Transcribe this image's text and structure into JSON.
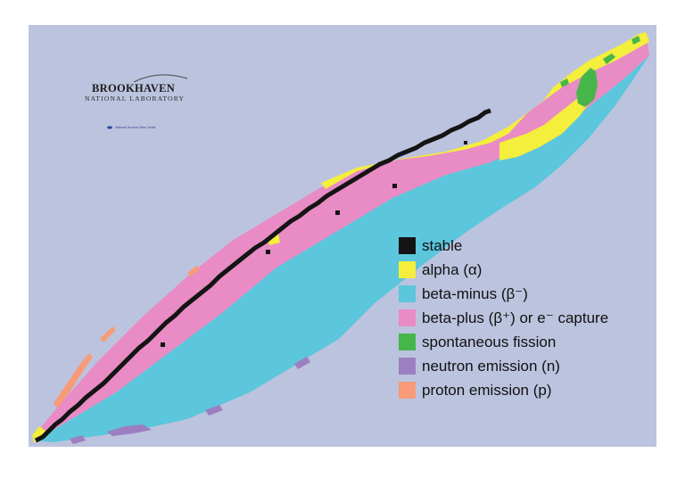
{
  "colors": {
    "background": "#bcc3de",
    "stable": "#141414",
    "alpha": "#f4ee3c",
    "beta_minus": "#5bc6dc",
    "beta_plus": "#e98bc4",
    "fission": "#46b64a",
    "neutron": "#9b7fc0",
    "proton": "#f79b78"
  },
  "logo": {
    "name": "BROOKHAVEN",
    "subtitle": "NATIONAL LABORATORY",
    "tiny": "National Nuclear Data Center"
  },
  "legend": [
    {
      "label": "stable",
      "color": "#141414"
    },
    {
      "label": "alpha (α)",
      "color": "#f4ee3c"
    },
    {
      "label": "beta-minus (β⁻)",
      "color": "#5bc6dc"
    },
    {
      "label": "beta-plus (β⁺) or e⁻ capture",
      "color": "#e98bc4"
    },
    {
      "label": "spontaneous fission",
      "color": "#46b64a"
    },
    {
      "label": "neutron emission (n)",
      "color": "#9b7fc0"
    },
    {
      "label": "proton emission (p)",
      "color": "#f79b78"
    }
  ]
}
